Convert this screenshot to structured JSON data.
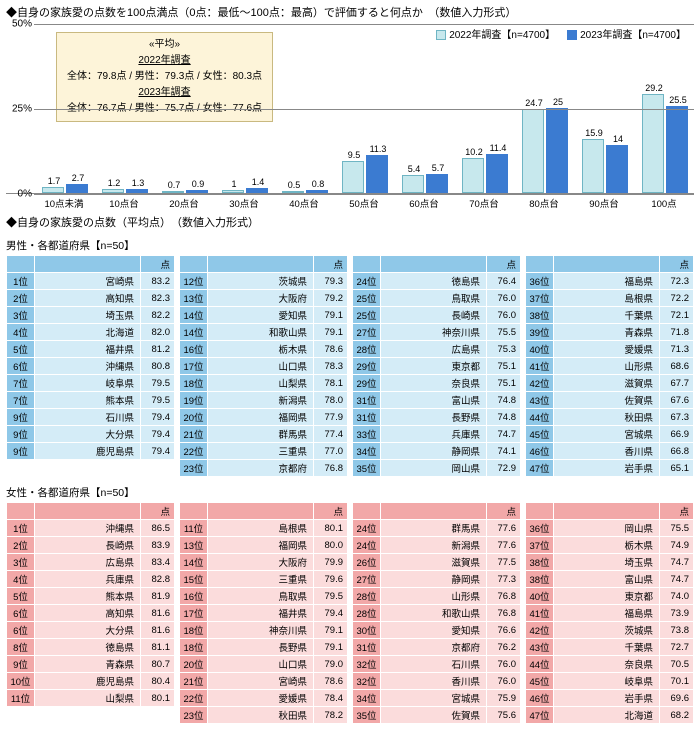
{
  "title1": "◆自身の家族愛の点数を100点満点（0点：最低～100点：最高）で評価すると何点か　（数値入力形式）",
  "chart": {
    "type": "bar",
    "ylim": [
      0,
      50
    ],
    "ytick_step": 25,
    "background": "#ffffff",
    "grid_color": "#888888",
    "series": [
      {
        "name": "2022年調査【n=4700】",
        "color": "#c7e8ed",
        "border": "#6fb5c4"
      },
      {
        "name": "2023年調査【n=4700】",
        "color": "#3b7bd1",
        "border": "#3b7bd1"
      }
    ],
    "categories": [
      "10点未満",
      "10点台",
      "20点台",
      "30点台",
      "40点台",
      "50点台",
      "60点台",
      "70点台",
      "80点台",
      "90点台",
      "100点"
    ],
    "values2022": [
      1.7,
      1.2,
      0.7,
      1.0,
      0.5,
      9.5,
      5.4,
      10.2,
      24.7,
      15.9,
      29.2
    ],
    "values2023": [
      2.7,
      1.3,
      0.9,
      1.4,
      0.8,
      11.3,
      5.7,
      11.4,
      25.0,
      14.0,
      25.5
    ],
    "avg_box": {
      "head": "«平均»",
      "y22u": "2022年調査",
      "y22": "全体：79.8点 / 男性：79.3点 / 女性：80.3点",
      "y23u": "2023年調査",
      "y23": "全体：76.7点 / 男性：75.7点 / 女性：77.6点"
    }
  },
  "title2": "◆自身の家族愛の点数（平均点）　（数値入力形式）",
  "male": {
    "head": "男性・各都道府県【n=50】",
    "colors": {
      "rank_bg": "#8fc8e8",
      "row_bg": "#d4ecf7",
      "hdr_bg": "#8fc8e8"
    },
    "point_label": "点",
    "cols": [
      [
        [
          "1位",
          "宮崎県",
          "83.2"
        ],
        [
          "2位",
          "高知県",
          "82.3"
        ],
        [
          "3位",
          "埼玉県",
          "82.2"
        ],
        [
          "4位",
          "北海道",
          "82.0"
        ],
        [
          "5位",
          "福井県",
          "81.2"
        ],
        [
          "6位",
          "沖縄県",
          "80.8"
        ],
        [
          "7位",
          "岐阜県",
          "79.5"
        ],
        [
          "7位",
          "熊本県",
          "79.5"
        ],
        [
          "9位",
          "石川県",
          "79.4"
        ],
        [
          "9位",
          "大分県",
          "79.4"
        ],
        [
          "9位",
          "鹿児島県",
          "79.4"
        ]
      ],
      [
        [
          "12位",
          "茨城県",
          "79.3"
        ],
        [
          "13位",
          "大阪府",
          "79.2"
        ],
        [
          "14位",
          "愛知県",
          "79.1"
        ],
        [
          "14位",
          "和歌山県",
          "79.1"
        ],
        [
          "16位",
          "栃木県",
          "78.6"
        ],
        [
          "17位",
          "山口県",
          "78.3"
        ],
        [
          "18位",
          "山梨県",
          "78.1"
        ],
        [
          "19位",
          "新潟県",
          "78.0"
        ],
        [
          "20位",
          "福岡県",
          "77.9"
        ],
        [
          "21位",
          "群馬県",
          "77.4"
        ],
        [
          "22位",
          "三重県",
          "77.0"
        ],
        [
          "23位",
          "京都府",
          "76.8"
        ]
      ],
      [
        [
          "24位",
          "徳島県",
          "76.4"
        ],
        [
          "25位",
          "鳥取県",
          "76.0"
        ],
        [
          "25位",
          "長崎県",
          "76.0"
        ],
        [
          "27位",
          "神奈川県",
          "75.5"
        ],
        [
          "28位",
          "広島県",
          "75.3"
        ],
        [
          "29位",
          "東京都",
          "75.1"
        ],
        [
          "29位",
          "奈良県",
          "75.1"
        ],
        [
          "31位",
          "富山県",
          "74.8"
        ],
        [
          "31位",
          "長野県",
          "74.8"
        ],
        [
          "33位",
          "兵庫県",
          "74.7"
        ],
        [
          "34位",
          "静岡県",
          "74.1"
        ],
        [
          "35位",
          "岡山県",
          "72.9"
        ]
      ],
      [
        [
          "36位",
          "福島県",
          "72.3"
        ],
        [
          "37位",
          "島根県",
          "72.2"
        ],
        [
          "38位",
          "千葉県",
          "72.1"
        ],
        [
          "39位",
          "青森県",
          "71.8"
        ],
        [
          "40位",
          "愛媛県",
          "71.3"
        ],
        [
          "41位",
          "山形県",
          "68.6"
        ],
        [
          "42位",
          "滋賀県",
          "67.7"
        ],
        [
          "43位",
          "佐賀県",
          "67.6"
        ],
        [
          "44位",
          "秋田県",
          "67.3"
        ],
        [
          "45位",
          "宮城県",
          "66.9"
        ],
        [
          "46位",
          "香川県",
          "66.8"
        ],
        [
          "47位",
          "岩手県",
          "65.1"
        ]
      ]
    ]
  },
  "female": {
    "head": "女性・各都道府県【n=50】",
    "colors": {
      "rank_bg": "#f2a8a8",
      "row_bg": "#fbdcdc",
      "hdr_bg": "#f2a8a8"
    },
    "point_label": "点",
    "cols": [
      [
        [
          "1位",
          "沖縄県",
          "86.5"
        ],
        [
          "2位",
          "長崎県",
          "83.9"
        ],
        [
          "3位",
          "広島県",
          "83.4"
        ],
        [
          "4位",
          "兵庫県",
          "82.8"
        ],
        [
          "5位",
          "熊本県",
          "81.9"
        ],
        [
          "6位",
          "高知県",
          "81.6"
        ],
        [
          "6位",
          "大分県",
          "81.6"
        ],
        [
          "8位",
          "徳島県",
          "81.1"
        ],
        [
          "9位",
          "青森県",
          "80.7"
        ],
        [
          "10位",
          "鹿児島県",
          "80.4"
        ],
        [
          "11位",
          "山梨県",
          "80.1"
        ]
      ],
      [
        [
          "11位",
          "島根県",
          "80.1"
        ],
        [
          "13位",
          "福岡県",
          "80.0"
        ],
        [
          "14位",
          "大阪府",
          "79.9"
        ],
        [
          "15位",
          "三重県",
          "79.6"
        ],
        [
          "16位",
          "鳥取県",
          "79.5"
        ],
        [
          "17位",
          "福井県",
          "79.4"
        ],
        [
          "18位",
          "神奈川県",
          "79.1"
        ],
        [
          "18位",
          "長野県",
          "79.1"
        ],
        [
          "20位",
          "山口県",
          "79.0"
        ],
        [
          "21位",
          "宮崎県",
          "78.6"
        ],
        [
          "22位",
          "愛媛県",
          "78.4"
        ],
        [
          "23位",
          "秋田県",
          "78.2"
        ]
      ],
      [
        [
          "24位",
          "群馬県",
          "77.6"
        ],
        [
          "24位",
          "新潟県",
          "77.6"
        ],
        [
          "26位",
          "滋賀県",
          "77.5"
        ],
        [
          "27位",
          "静岡県",
          "77.3"
        ],
        [
          "28位",
          "山形県",
          "76.8"
        ],
        [
          "28位",
          "和歌山県",
          "76.8"
        ],
        [
          "30位",
          "愛知県",
          "76.6"
        ],
        [
          "31位",
          "京都府",
          "76.2"
        ],
        [
          "32位",
          "石川県",
          "76.0"
        ],
        [
          "32位",
          "香川県",
          "76.0"
        ],
        [
          "34位",
          "宮城県",
          "75.9"
        ],
        [
          "35位",
          "佐賀県",
          "75.6"
        ]
      ],
      [
        [
          "36位",
          "岡山県",
          "75.5"
        ],
        [
          "37位",
          "栃木県",
          "74.9"
        ],
        [
          "38位",
          "埼玉県",
          "74.7"
        ],
        [
          "38位",
          "富山県",
          "74.7"
        ],
        [
          "40位",
          "東京都",
          "74.0"
        ],
        [
          "41位",
          "福島県",
          "73.9"
        ],
        [
          "42位",
          "茨城県",
          "73.8"
        ],
        [
          "43位",
          "千葉県",
          "72.7"
        ],
        [
          "44位",
          "奈良県",
          "70.5"
        ],
        [
          "45位",
          "岐阜県",
          "70.1"
        ],
        [
          "46位",
          "岩手県",
          "69.6"
        ],
        [
          "47位",
          "北海道",
          "68.2"
        ]
      ]
    ]
  }
}
